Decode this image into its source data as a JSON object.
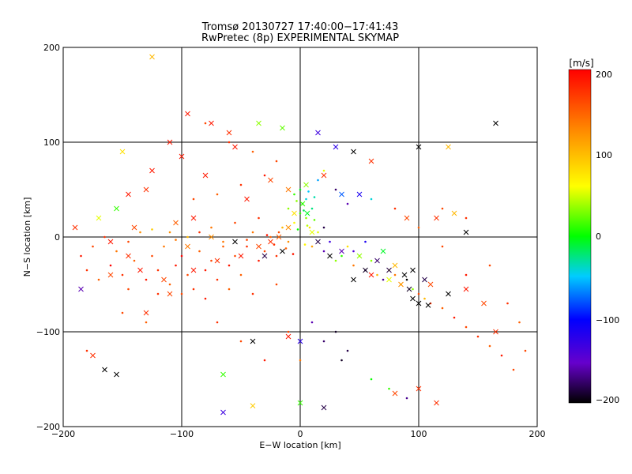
{
  "chart_data": {
    "type": "scatter",
    "title": "Tromsø 20130727 17:40:00−17:41:43",
    "subtitle": "RwPretec (8p) EXPERIMENTAL SKYMAP",
    "xlabel": "E−W location [km]",
    "ylabel": "N−S location [km]",
    "xlim": [
      -200,
      200
    ],
    "ylim": [
      -200,
      200
    ],
    "x_ticks": [
      "−200",
      "−100",
      "0",
      "100",
      "200"
    ],
    "y_ticks": [
      "−200",
      "−100",
      "0",
      "100",
      "200"
    ],
    "grid": true,
    "colorbar": {
      "label": "[m/s]",
      "range": [
        -200,
        200
      ],
      "ticks": [
        "200",
        "100",
        "0",
        "−100",
        "−200"
      ],
      "colors": [
        "#000000",
        "#6600cc",
        "#0000ff",
        "#00ccff",
        "#00ff00",
        "#ffff00",
        "#ff8800",
        "#ff0000"
      ]
    },
    "series": [
      {
        "marker": "dot",
        "color_by": "velocity",
        "points": [
          [
            -185,
            -20,
            190
          ],
          [
            -180,
            -35,
            180
          ],
          [
            -175,
            -10,
            170
          ],
          [
            -170,
            -45,
            160
          ],
          [
            -160,
            -30,
            200
          ],
          [
            -155,
            -15,
            150
          ],
          [
            -150,
            -40,
            180
          ],
          [
            -145,
            -55,
            170
          ],
          [
            -140,
            -25,
            160
          ],
          [
            -135,
            5,
            140
          ],
          [
            -130,
            -45,
            190
          ],
          [
            -125,
            -20,
            170
          ],
          [
            -120,
            -35,
            180
          ],
          [
            -115,
            -10,
            150
          ],
          [
            -110,
            -50,
            160
          ],
          [
            -105,
            -30,
            190
          ],
          [
            -100,
            -20,
            200
          ],
          [
            -95,
            -40,
            170
          ],
          [
            -90,
            -55,
            180
          ],
          [
            -85,
            -15,
            160
          ],
          [
            -80,
            -35,
            190
          ],
          [
            -75,
            -25,
            170
          ],
          [
            -70,
            -45,
            180
          ],
          [
            -65,
            -5,
            150
          ],
          [
            -60,
            -30,
            190
          ],
          [
            -55,
            -20,
            170
          ],
          [
            -50,
            -40,
            160
          ],
          [
            -45,
            -10,
            180
          ],
          [
            -40,
            5,
            150
          ],
          [
            -35,
            -25,
            190
          ],
          [
            -30,
            -15,
            170
          ],
          [
            -25,
            0,
            160
          ],
          [
            -20,
            -20,
            180
          ],
          [
            -15,
            10,
            120
          ],
          [
            -10,
            -5,
            140
          ],
          [
            -5,
            15,
            90
          ],
          [
            0,
            25,
            40
          ],
          [
            2,
            35,
            20
          ],
          [
            5,
            20,
            60
          ],
          [
            8,
            10,
            100
          ],
          [
            10,
            -10,
            130
          ],
          [
            15,
            5,
            80
          ],
          [
            20,
            -15,
            -150
          ],
          [
            25,
            -5,
            -120
          ],
          [
            30,
            -25,
            60
          ],
          [
            35,
            -20,
            40
          ],
          [
            40,
            -10,
            100
          ],
          [
            45,
            -30,
            150
          ],
          [
            50,
            -20,
            80
          ],
          [
            55,
            -35,
            -180
          ],
          [
            60,
            -25,
            60
          ],
          [
            65,
            -40,
            120
          ],
          [
            70,
            -45,
            -160
          ],
          [
            75,
            -35,
            80
          ],
          [
            80,
            -40,
            150
          ],
          [
            85,
            -50,
            100
          ],
          [
            90,
            -45,
            -200
          ],
          [
            95,
            -55,
            60
          ],
          [
            100,
            -60,
            170
          ],
          [
            105,
            -65,
            120
          ],
          [
            110,
            -70,
            180
          ],
          [
            120,
            -75,
            160
          ],
          [
            130,
            -85,
            190
          ],
          [
            140,
            -95,
            170
          ],
          [
            150,
            -105,
            180
          ],
          [
            160,
            -115,
            160
          ],
          [
            170,
            -125,
            190
          ],
          [
            180,
            -140,
            170
          ],
          [
            -120,
            -60,
            180
          ],
          [
            -100,
            -60,
            170
          ],
          [
            -80,
            -65,
            190
          ],
          [
            -60,
            -55,
            160
          ],
          [
            -40,
            -60,
            180
          ],
          [
            -20,
            -50,
            170
          ],
          [
            -110,
            5,
            140
          ],
          [
            -95,
            0,
            120
          ],
          [
            -75,
            10,
            150
          ],
          [
            -55,
            15,
            170
          ],
          [
            -35,
            20,
            180
          ],
          [
            -10,
            30,
            60
          ],
          [
            -5,
            45,
            40
          ],
          [
            0,
            50,
            20
          ],
          [
            5,
            40,
            -20
          ],
          [
            10,
            30,
            0
          ],
          [
            15,
            60,
            -40
          ],
          [
            20,
            70,
            80
          ],
          [
            -90,
            40,
            170
          ],
          [
            -70,
            45,
            160
          ],
          [
            -50,
            55,
            180
          ],
          [
            -30,
            65,
            190
          ],
          [
            -20,
            80,
            170
          ],
          [
            -40,
            90,
            160
          ],
          [
            -60,
            100,
            180
          ],
          [
            -80,
            120,
            170
          ],
          [
            10,
            -90,
            -150
          ],
          [
            20,
            -110,
            -170
          ],
          [
            30,
            -100,
            -190
          ],
          [
            40,
            -120,
            -180
          ],
          [
            -10,
            -100,
            170
          ],
          [
            0,
            -130,
            150
          ],
          [
            35,
            -130,
            -190
          ],
          [
            60,
            -150,
            30
          ],
          [
            75,
            -160,
            40
          ],
          [
            90,
            -170,
            -160
          ],
          [
            -180,
            -120,
            180
          ],
          [
            -150,
            -80,
            170
          ],
          [
            -130,
            -90,
            160
          ],
          [
            -70,
            -90,
            180
          ],
          [
            -50,
            -110,
            170
          ],
          [
            -30,
            -130,
            190
          ],
          [
            120,
            30,
            170
          ],
          [
            140,
            20,
            180
          ],
          [
            160,
            -30,
            170
          ],
          [
            175,
            -70,
            180
          ],
          [
            185,
            -90,
            160
          ],
          [
            190,
            -120,
            170
          ],
          [
            140,
            -40,
            190
          ],
          [
            120,
            -10,
            170
          ],
          [
            100,
            10,
            160
          ],
          [
            80,
            30,
            180
          ],
          [
            60,
            40,
            -20
          ],
          [
            40,
            35,
            -150
          ],
          [
            30,
            50,
            -170
          ],
          [
            20,
            10,
            -180
          ],
          [
            45,
            -15,
            -130
          ],
          [
            55,
            -5,
            -100
          ],
          [
            -165,
            0,
            180
          ],
          [
            -145,
            -5,
            170
          ],
          [
            -125,
            8,
            110
          ],
          [
            -105,
            -3,
            150
          ],
          [
            -85,
            5,
            180
          ],
          [
            -65,
            -10,
            160
          ],
          [
            -45,
            -3,
            170
          ],
          [
            -28,
            2,
            190
          ],
          [
            -22,
            -8,
            180
          ],
          [
            -18,
            5,
            170
          ],
          [
            -12,
            -12,
            160
          ],
          [
            -6,
            -18,
            190
          ],
          [
            4,
            -8,
            90
          ],
          [
            6,
            12,
            70
          ],
          [
            12,
            18,
            50
          ],
          [
            -2,
            8,
            30
          ],
          [
            3,
            28,
            10
          ],
          [
            7,
            48,
            -30
          ],
          [
            -3,
            38,
            60
          ],
          [
            12,
            42,
            -10
          ]
        ]
      },
      {
        "marker": "x",
        "color_by": "velocity",
        "points": [
          [
            -125,
            190,
            120
          ],
          [
            -95,
            130,
            190
          ],
          [
            -110,
            100,
            190
          ],
          [
            -75,
            120,
            190
          ],
          [
            -60,
            110,
            180
          ],
          [
            -55,
            95,
            190
          ],
          [
            -35,
            120,
            60
          ],
          [
            -15,
            115,
            50
          ],
          [
            15,
            110,
            -120
          ],
          [
            30,
            95,
            -110
          ],
          [
            45,
            90,
            -200
          ],
          [
            60,
            80,
            180
          ],
          [
            100,
            95,
            -200
          ],
          [
            125,
            95,
            120
          ],
          [
            165,
            120,
            -200
          ],
          [
            -150,
            90,
            100
          ],
          [
            -100,
            85,
            190
          ],
          [
            -80,
            65,
            190
          ],
          [
            -125,
            70,
            190
          ],
          [
            -130,
            50,
            180
          ],
          [
            -145,
            45,
            190
          ],
          [
            -155,
            30,
            40
          ],
          [
            -170,
            20,
            80
          ],
          [
            -190,
            10,
            180
          ],
          [
            -145,
            -20,
            180
          ],
          [
            -135,
            -35,
            190
          ],
          [
            -115,
            -45,
            170
          ],
          [
            -90,
            -35,
            190
          ],
          [
            -70,
            -25,
            180
          ],
          [
            -50,
            -20,
            190
          ],
          [
            -35,
            -10,
            170
          ],
          [
            -25,
            -5,
            180
          ],
          [
            -18,
            0,
            160
          ],
          [
            -10,
            10,
            140
          ],
          [
            -5,
            25,
            100
          ],
          [
            2,
            35,
            40
          ],
          [
            6,
            25,
            20
          ],
          [
            10,
            5,
            80
          ],
          [
            15,
            -5,
            -180
          ],
          [
            25,
            -20,
            -200
          ],
          [
            35,
            -15,
            -150
          ],
          [
            50,
            -20,
            60
          ],
          [
            65,
            -25,
            -170
          ],
          [
            80,
            -30,
            120
          ],
          [
            95,
            -35,
            -200
          ],
          [
            105,
            -45,
            -180
          ],
          [
            95,
            -65,
            -200
          ],
          [
            100,
            -70,
            -200
          ],
          [
            110,
            -50,
            170
          ],
          [
            125,
            -60,
            -200
          ],
          [
            140,
            -55,
            190
          ],
          [
            155,
            -70,
            170
          ],
          [
            165,
            -100,
            180
          ],
          [
            -175,
            -125,
            180
          ],
          [
            -155,
            -145,
            -200
          ],
          [
            -165,
            -140,
            -200
          ],
          [
            -65,
            -145,
            40
          ],
          [
            -40,
            -110,
            -200
          ],
          [
            -10,
            -105,
            190
          ],
          [
            0,
            -110,
            -110
          ],
          [
            0,
            -175,
            40
          ],
          [
            20,
            -180,
            -180
          ],
          [
            80,
            -165,
            170
          ],
          [
            100,
            -160,
            180
          ],
          [
            115,
            -175,
            180
          ],
          [
            -65,
            -185,
            -120
          ],
          [
            -40,
            -178,
            110
          ],
          [
            -110,
            -60,
            170
          ],
          [
            -130,
            -80,
            180
          ],
          [
            -160,
            -40,
            170
          ],
          [
            -185,
            -55,
            -150
          ],
          [
            60,
            -40,
            190
          ],
          [
            75,
            -45,
            80
          ],
          [
            85,
            -50,
            140
          ],
          [
            70,
            -15,
            20
          ],
          [
            90,
            20,
            170
          ],
          [
            115,
            20,
            180
          ],
          [
            130,
            25,
            120
          ],
          [
            140,
            5,
            -200
          ],
          [
            -45,
            40,
            190
          ],
          [
            -25,
            60,
            170
          ],
          [
            -10,
            50,
            150
          ],
          [
            5,
            55,
            60
          ],
          [
            20,
            65,
            180
          ],
          [
            35,
            45,
            -60
          ],
          [
            50,
            45,
            -100
          ],
          [
            -90,
            20,
            190
          ],
          [
            -105,
            15,
            160
          ],
          [
            -140,
            10,
            170
          ],
          [
            -160,
            -5,
            190
          ],
          [
            -95,
            -10,
            150
          ],
          [
            -75,
            0,
            140
          ],
          [
            -55,
            -5,
            -200
          ],
          [
            -30,
            -20,
            -180
          ],
          [
            -15,
            -15,
            -200
          ],
          [
            45,
            -45,
            -200
          ],
          [
            55,
            -35,
            -190
          ],
          [
            75,
            -35,
            -180
          ],
          [
            88,
            -40,
            -200
          ],
          [
            92,
            -55,
            -190
          ],
          [
            108,
            -72,
            -200
          ]
        ]
      }
    ]
  }
}
